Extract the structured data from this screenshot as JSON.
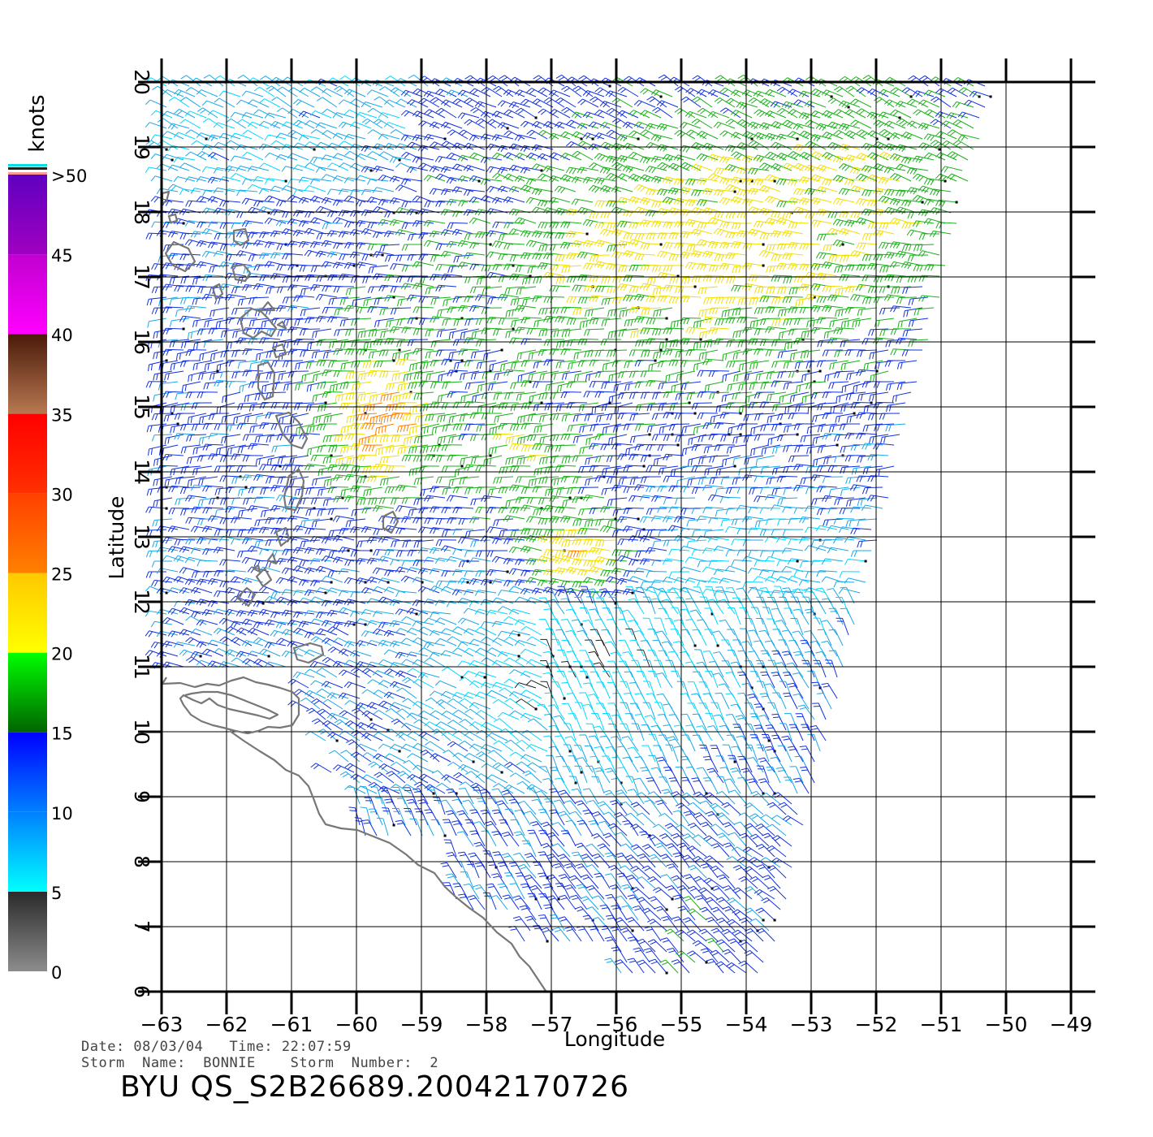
{
  "map": {
    "xlabel": "Longitude",
    "ylabel": "Latitude",
    "lon_ticks": [
      -63,
      -62,
      -61,
      -60,
      -59,
      -58,
      -57,
      -56,
      -55,
      -54,
      -53,
      -52,
      -51,
      -50,
      -49
    ],
    "lat_ticks": [
      6,
      7,
      8,
      9,
      10,
      11,
      12,
      13,
      14,
      15,
      16,
      17,
      18,
      19,
      20
    ],
    "lon_range": [
      -63,
      -49
    ],
    "lat_range": [
      6,
      20
    ],
    "grid": true,
    "coast_color": "#777777"
  },
  "colorbar": {
    "title": "knots",
    "labels": [
      "0",
      "5",
      "10",
      "15",
      "20",
      "25",
      "30",
      "35",
      "40",
      "45",
      ">50"
    ],
    "segments": [
      {
        "from": 0,
        "to": 5,
        "c0": "#8c8c8c",
        "c1": "#2a2a2a"
      },
      {
        "from": 5,
        "to": 10,
        "c0": "#00ffff",
        "c1": "#0080ff"
      },
      {
        "from": 10,
        "to": 15,
        "c0": "#0080ff",
        "c1": "#0000ff"
      },
      {
        "from": 15,
        "to": 20,
        "c0": "#006400",
        "c1": "#00ff00"
      },
      {
        "from": 20,
        "to": 25,
        "c0": "#ffff00",
        "c1": "#ffc800"
      },
      {
        "from": 25,
        "to": 30,
        "c0": "#ff8000",
        "c1": "#ff4000"
      },
      {
        "from": 30,
        "to": 35,
        "c0": "#ff3000",
        "c1": "#ff0000"
      },
      {
        "from": 35,
        "to": 40,
        "c0": "#b87850",
        "c1": "#4a1a0a"
      },
      {
        "from": 40,
        "to": 45,
        "c0": "#ff00ff",
        "c1": "#c000d0"
      },
      {
        "from": 45,
        "to": 50,
        "c0": "#a000c0",
        "c1": "#6000c0"
      }
    ]
  },
  "info": {
    "line1": "Date: 08/03/04   Time: 22:07:59",
    "line2": "Storm  Name:  BONNIE    Storm  Number:  2",
    "title": "BYU  QS_S2B26689.20042170726"
  }
}
